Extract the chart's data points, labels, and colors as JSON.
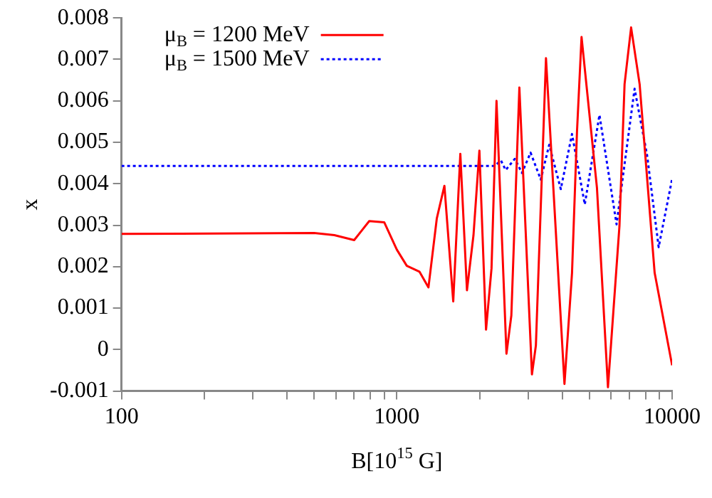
{
  "chart_data": {
    "type": "line",
    "xlabel": "B[10$^{15}$ G]",
    "ylabel": "x",
    "log": "x",
    "grid": false,
    "legend": "top left",
    "marker": "none",
    "xlim": [
      100,
      10000
    ],
    "xticks": [
      100,
      {
        "value": 200,
        "label": null
      },
      {
        "value": 300,
        "label": null
      },
      {
        "value": 400,
        "label": null
      },
      {
        "value": 500,
        "label": null
      },
      {
        "value": 600,
        "label": null
      },
      {
        "value": 700,
        "label": null
      },
      {
        "value": 800,
        "label": null
      },
      {
        "value": 900,
        "label": null
      },
      1000,
      {
        "value": 2000,
        "label": null
      },
      {
        "value": 3000,
        "label": null
      },
      {
        "value": 4000,
        "label": null
      },
      {
        "value": 5000,
        "label": null
      },
      {
        "value": 6000,
        "label": null
      },
      {
        "value": 7000,
        "label": null
      },
      {
        "value": 8000,
        "label": null
      },
      {
        "value": 9000,
        "label": null
      },
      10000
    ],
    "ylim": [
      -0.001,
      0.008
    ],
    "yticks": [
      -0.001,
      0,
      0.001,
      0.002,
      0.003,
      0.004,
      0.005,
      0.006,
      0.007,
      0.008
    ],
    "series": [
      {
        "name": "μ$_{B}$ = 1200 MeV",
        "color": "#ff0000",
        "line_style": "solid",
        "x": [
          100,
          501,
          593,
          700,
          794,
          900,
          1000,
          1087,
          1208,
          1303,
          1397,
          1489,
          1603,
          1701,
          1798,
          1899,
          1995,
          2109,
          2208,
          2302,
          2502,
          2606,
          2787,
          3096,
          3200,
          3482,
          4064,
          4329,
          4513,
          4688,
          5333,
          5847,
          6437,
          6718,
          7096,
          7621,
          8640,
          10000
        ],
        "values": [
          0.00279,
          0.00281,
          0.00276,
          0.00264,
          0.0031,
          0.00307,
          0.00241,
          0.00202,
          0.00188,
          0.0015,
          0.00316,
          0.00395,
          0.00116,
          0.00472,
          0.00143,
          0.00276,
          0.0048,
          0.00048,
          0.00196,
          0.006,
          -0.0001,
          0.00082,
          0.00632,
          -0.0006,
          0.0001,
          0.00703,
          -0.00083,
          0.00185,
          0.00526,
          0.00754,
          0.0039,
          -0.00091,
          0.00298,
          0.0064,
          0.00777,
          0.0064,
          0.00185,
          -0.00038
        ]
      },
      {
        "name": "μ$_{B}$ = 1500 MeV",
        "color": "#0000ff",
        "line_style": "dotted",
        "x": [
          100,
          1650,
          2264,
          2390,
          2485,
          2683,
          2848,
          3061,
          3333,
          3577,
          3941,
          4329,
          4817,
          5446,
          6283,
          7305,
          8110,
          8935,
          10000
        ],
        "values": [
          0.00443,
          0.00443,
          0.00443,
          0.00456,
          0.00433,
          0.0046,
          0.00426,
          0.00475,
          0.0041,
          0.00494,
          0.00387,
          0.0052,
          0.0035,
          0.00566,
          0.00302,
          0.00629,
          0.00469,
          0.00247,
          0.00412
        ]
      }
    ]
  }
}
